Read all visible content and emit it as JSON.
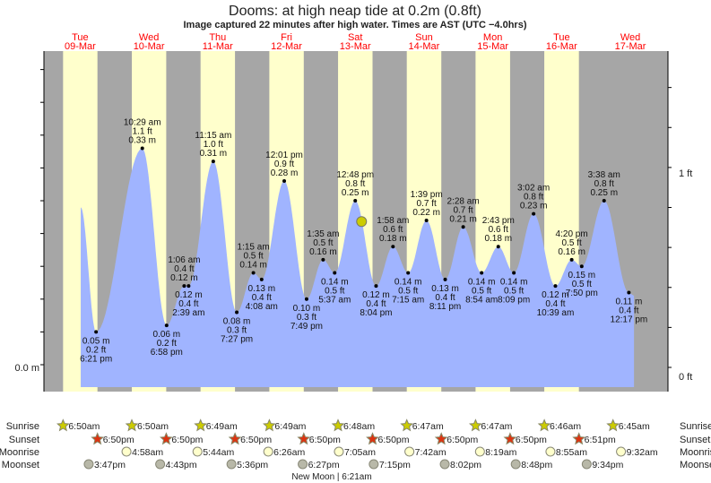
{
  "title": "Dooms: at high  neap tide at 0.2m (0.8ft)",
  "subtitle": "Image captured 22 minutes after high water. Times are AST (UTC −4.0hrs)",
  "colors": {
    "day": "#ffffcc",
    "night": "#a6a6a6",
    "tide": "#a0b4ff",
    "date": "#ff0000",
    "sunrise": "#cccc00",
    "sunset": "#dd3311",
    "moonrise": "#ffffcc",
    "moonset": "#b8b8a8",
    "now": "#cccc00"
  },
  "chart_data": {
    "type": "area",
    "y_left_label": "0.0 m",
    "y_right_labels": [
      "1 ft",
      "0 ft"
    ],
    "days": [
      {
        "name": "Tue",
        "date": "09-Mar"
      },
      {
        "name": "Wed",
        "date": "10-Mar"
      },
      {
        "name": "Thu",
        "date": "11-Mar"
      },
      {
        "name": "Fri",
        "date": "12-Mar"
      },
      {
        "name": "Sat",
        "date": "13-Mar"
      },
      {
        "name": "Sun",
        "date": "14-Mar"
      },
      {
        "name": "Mon",
        "date": "15-Mar"
      },
      {
        "name": "Tue",
        "date": "16-Mar"
      },
      {
        "name": "Wed",
        "date": "17-Mar"
      }
    ],
    "curve_start": {
      "day": 0,
      "time": "1:00 pm",
      "m": 0.24
    },
    "tides": [
      {
        "day": 0,
        "time": "6:21 pm",
        "ft": "0.2 ft",
        "m": 0.05,
        "type": "low"
      },
      {
        "day": 1,
        "time": "10:29 am",
        "ft": "1.1 ft",
        "m": 0.33,
        "type": "high"
      },
      {
        "day": 1,
        "time": "6:58 pm",
        "ft": "0.2 ft",
        "m": 0.06,
        "type": "low"
      },
      {
        "day": 2,
        "time": "1:06 am",
        "ft": "0.4 ft",
        "m": 0.12,
        "type": "high"
      },
      {
        "day": 2,
        "time": "2:39 am",
        "ft": "0.4 ft",
        "m": 0.12,
        "type": "low"
      },
      {
        "day": 2,
        "time": "11:15 am",
        "ft": "1.0 ft",
        "m": 0.31,
        "type": "high"
      },
      {
        "day": 2,
        "time": "7:27 pm",
        "ft": "0.3 ft",
        "m": 0.08,
        "type": "low"
      },
      {
        "day": 3,
        "time": "1:15 am",
        "ft": "0.5 ft",
        "m": 0.14,
        "type": "high"
      },
      {
        "day": 3,
        "time": "4:08 am",
        "ft": "0.4 ft",
        "m": 0.13,
        "type": "low"
      },
      {
        "day": 3,
        "time": "12:01 pm",
        "ft": "0.9 ft",
        "m": 0.28,
        "type": "high"
      },
      {
        "day": 3,
        "time": "7:49 pm",
        "ft": "0.3 ft",
        "m": 0.1,
        "type": "low"
      },
      {
        "day": 4,
        "time": "1:35 am",
        "ft": "0.5 ft",
        "m": 0.16,
        "type": "high"
      },
      {
        "day": 4,
        "time": "5:37 am",
        "ft": "0.5 ft",
        "m": 0.14,
        "type": "low"
      },
      {
        "day": 4,
        "time": "12:48 pm",
        "ft": "0.8 ft",
        "m": 0.25,
        "type": "high"
      },
      {
        "day": 4,
        "time": "8:04 pm",
        "ft": "0.4 ft",
        "m": 0.12,
        "type": "low"
      },
      {
        "day": 5,
        "time": "1:58 am",
        "ft": "0.6 ft",
        "m": 0.18,
        "type": "high"
      },
      {
        "day": 5,
        "time": "7:15 am",
        "ft": "0.5 ft",
        "m": 0.14,
        "type": "low"
      },
      {
        "day": 5,
        "time": "1:39 pm",
        "ft": "0.7 ft",
        "m": 0.22,
        "type": "high"
      },
      {
        "day": 5,
        "time": "8:11 pm",
        "ft": "0.4 ft",
        "m": 0.13,
        "type": "low"
      },
      {
        "day": 6,
        "time": "2:28 am",
        "ft": "0.7 ft",
        "m": 0.21,
        "type": "high"
      },
      {
        "day": 6,
        "time": "8:54 am",
        "ft": "0.5 ft",
        "m": 0.14,
        "type": "low"
      },
      {
        "day": 6,
        "time": "2:43 pm",
        "ft": "0.6 ft",
        "m": 0.18,
        "type": "high"
      },
      {
        "day": 6,
        "time": "8:09 pm",
        "ft": "0.5 ft",
        "m": 0.14,
        "type": "low"
      },
      {
        "day": 7,
        "time": "3:02 am",
        "ft": "0.8 ft",
        "m": 0.23,
        "type": "high"
      },
      {
        "day": 7,
        "time": "10:39 am",
        "ft": "0.4 ft",
        "m": 0.12,
        "type": "low"
      },
      {
        "day": 7,
        "time": "4:20 pm",
        "ft": "0.5 ft",
        "m": 0.16,
        "type": "high"
      },
      {
        "day": 7,
        "time": "7:50 pm",
        "ft": "0.5 ft",
        "m": 0.15,
        "type": "low"
      },
      {
        "day": 8,
        "time": "3:38 am",
        "ft": "0.8 ft",
        "m": 0.25,
        "type": "high"
      },
      {
        "day": 8,
        "time": "12:17 pm",
        "ft": "0.4 ft",
        "m": 0.11,
        "type": "low"
      }
    ],
    "now": {
      "day": 4,
      "time": "3:00 pm",
      "m": 0.21
    }
  },
  "rows": {
    "labels": {
      "sunrise": "Sunrise",
      "sunset": "Sunset",
      "moonrise": "Moonrise",
      "moonset": "Moonset"
    },
    "sunrise": [
      {
        "day": 0,
        "t": "6:50am"
      },
      {
        "day": 1,
        "t": "6:50am"
      },
      {
        "day": 2,
        "t": "6:49am"
      },
      {
        "day": 3,
        "t": "6:49am"
      },
      {
        "day": 4,
        "t": "6:48am"
      },
      {
        "day": 5,
        "t": "6:47am"
      },
      {
        "day": 6,
        "t": "6:47am"
      },
      {
        "day": 7,
        "t": "6:46am"
      },
      {
        "day": 8,
        "t": "6:45am"
      }
    ],
    "sunset": [
      {
        "day": 0,
        "t": "6:50pm"
      },
      {
        "day": 1,
        "t": "6:50pm"
      },
      {
        "day": 2,
        "t": "6:50pm"
      },
      {
        "day": 3,
        "t": "6:50pm"
      },
      {
        "day": 4,
        "t": "6:50pm"
      },
      {
        "day": 5,
        "t": "6:50pm"
      },
      {
        "day": 6,
        "t": "6:50pm"
      },
      {
        "day": 7,
        "t": "6:51pm"
      }
    ],
    "moonrise": [
      {
        "day": 1,
        "t": "4:58am"
      },
      {
        "day": 2,
        "t": "5:44am"
      },
      {
        "day": 3,
        "t": "6:26am"
      },
      {
        "day": 4,
        "t": "7:05am"
      },
      {
        "day": 5,
        "t": "7:42am"
      },
      {
        "day": 6,
        "t": "8:19am"
      },
      {
        "day": 7,
        "t": "8:55am"
      },
      {
        "day": 8,
        "t": "9:32am"
      }
    ],
    "moonset": [
      {
        "day": 0,
        "t": "3:47pm"
      },
      {
        "day": 1,
        "t": "4:43pm"
      },
      {
        "day": 2,
        "t": "5:36pm"
      },
      {
        "day": 3,
        "t": "6:27pm"
      },
      {
        "day": 4,
        "t": "7:15pm"
      },
      {
        "day": 5,
        "t": "8:02pm"
      },
      {
        "day": 6,
        "t": "8:48pm"
      },
      {
        "day": 7,
        "t": "9:34pm"
      }
    ],
    "new_moon": "New Moon | 6:21am"
  }
}
